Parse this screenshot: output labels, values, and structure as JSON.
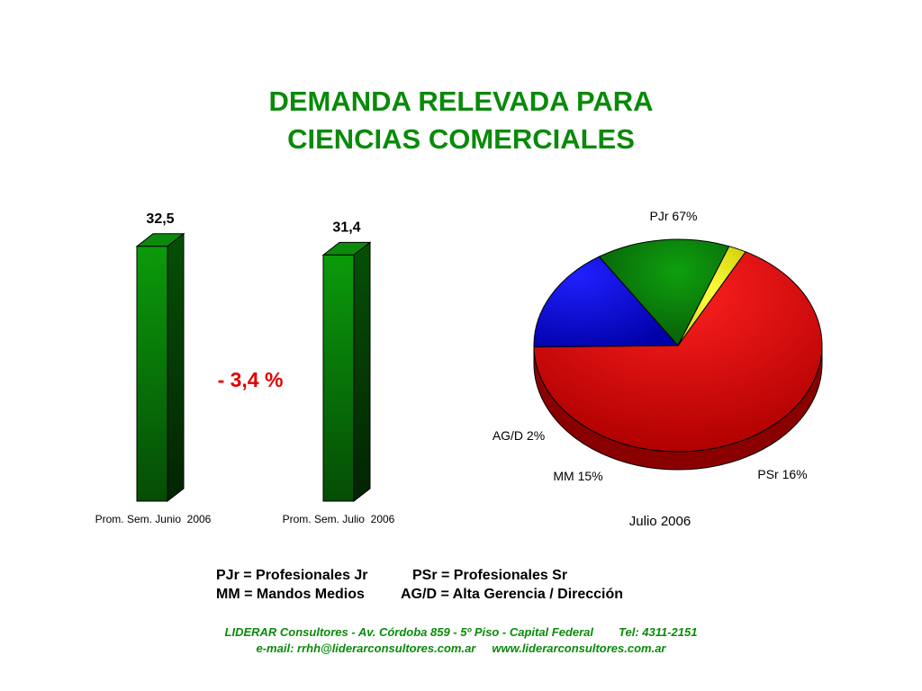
{
  "title": {
    "line1": "DEMANDA RELEVADA PARA",
    "line2": "CIENCIAS COMERCIALES"
  },
  "change_label": "- 3,4 %",
  "colors": {
    "title": "#0a8a0a",
    "bar": "#0a8a0a",
    "change": "#e00000",
    "PJr": "#e00000",
    "PSr": "#0000e0",
    "MM": "#0a800a",
    "AGD": "#f0f010"
  },
  "chart_data": [
    {
      "type": "bar",
      "categories": [
        "Prom. Sem. Junio  2006",
        "Prom. Sem. Julio  2006"
      ],
      "values": [
        32.5,
        31.4
      ],
      "data_labels": [
        "32,5",
        "31,4"
      ],
      "ylim": [
        0,
        35
      ],
      "style": "3d"
    },
    {
      "type": "pie",
      "title": "Julio 2006",
      "slices": [
        {
          "key": "PJr",
          "label": "PJr 67%",
          "value": 67
        },
        {
          "key": "PSr",
          "label": "PSr 16%",
          "value": 16
        },
        {
          "key": "MM",
          "label": "MM 15%",
          "value": 15
        },
        {
          "key": "AGD",
          "label": "AG/D 2%",
          "value": 2
        }
      ],
      "style": "3d"
    }
  ],
  "legend": {
    "row1": [
      "PJr = Profesionales Jr",
      "PSr = Profesionales Sr"
    ],
    "row2": [
      "MM = Mandos Medios",
      "AG/D = Alta Gerencia / Dirección"
    ]
  },
  "footer": {
    "line1_left": "LIDERAR Consultores - Av. Córdoba 859 - 5º Piso - Capital Federal",
    "line1_right": "Tel: 4311-2151",
    "line2_left": "e-mail: rrhh@liderarconsultores.com.ar",
    "line2_right": "www.liderarconsultores.com.ar"
  }
}
